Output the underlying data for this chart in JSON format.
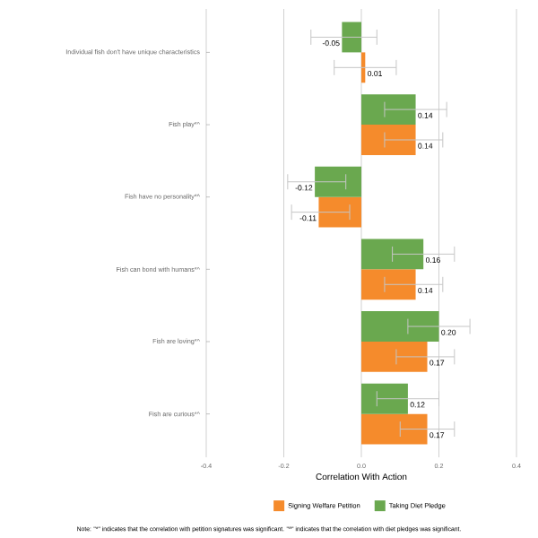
{
  "chart_data": {
    "type": "bar",
    "orientation": "horizontal",
    "categories": [
      "Individual fish don't have unique characteristics",
      "Fish play*^",
      "Fish have no personality*^",
      "Fish can bond with humans*^",
      "Fish are loving*^",
      "Fish are curious*^"
    ],
    "series": [
      {
        "name": "Signing Welfare Petition",
        "color": "#f58b2c",
        "values": [
          0.01,
          0.14,
          -0.11,
          0.14,
          0.17,
          0.17
        ],
        "errors": [
          [
            -0.07,
            0.09
          ],
          [
            0.06,
            0.21
          ],
          [
            -0.18,
            -0.03
          ],
          [
            0.06,
            0.21
          ],
          [
            0.09,
            0.24
          ],
          [
            0.1,
            0.24
          ]
        ],
        "value_labels": [
          "0.01",
          "0.14",
          "-0.11",
          "0.14",
          "0.17",
          "0.17"
        ]
      },
      {
        "name": "Taking Diet Pledge",
        "color": "#6aa84f",
        "values": [
          -0.05,
          0.14,
          -0.12,
          0.16,
          0.2,
          0.12
        ],
        "errors": [
          [
            -0.13,
            0.04
          ],
          [
            0.06,
            0.22
          ],
          [
            -0.19,
            -0.04
          ],
          [
            0.08,
            0.24
          ],
          [
            0.12,
            0.28
          ],
          [
            0.04,
            0.2
          ]
        ],
        "value_labels": [
          "-0.05",
          "0.14",
          "-0.12",
          "0.16",
          "0.20",
          "0.12"
        ]
      }
    ],
    "xlabel": "Correlation With Action",
    "xlim": [
      -0.4,
      0.4
    ],
    "xticks": [
      -0.4,
      -0.2,
      {
        "value": 0,
        "label": "0.0"
      },
      0.2,
      0.4
    ],
    "grid": "x",
    "legend": "bottom",
    "annotations": [
      "Note: \"*\" indicates that the correlation with petition signatures was significant. \"^\" indicates that the correlation with diet pledges was significant."
    ]
  }
}
